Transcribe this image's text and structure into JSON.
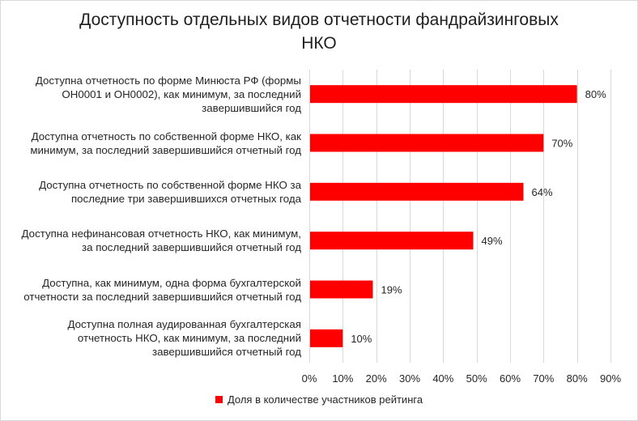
{
  "chart_data": {
    "type": "bar",
    "orientation": "horizontal",
    "title": [
      "Доступность отдельных видов отчетности фандрайзинговых",
      "НКО"
    ],
    "categories": [
      [
        "Доступна отчетность по форме Минюста РФ (формы",
        "ОН0001 и ОН0002), как минимум, за последний",
        "завершившийся год"
      ],
      [
        "Доступна отчетность по собственной форме НКО, как",
        "минимум, за последний завершившийся отчетный год"
      ],
      [
        "Доступна отчетность по собственной форме НКО за",
        "последние три завершившихся  отчетных года"
      ],
      [
        "Доступна нефинансовая отчетность НКО, как минимум,",
        "за последний завершившийся отчетный год"
      ],
      [
        "Доступна, как минимум, одна форма бухгалтерской",
        "отчетности за последний завершившийся отчетный год"
      ],
      [
        "Доступна полная аудированная бухгалтерская",
        "отчетность НКО, как минимум, за последний",
        "завершившийся отчетный год"
      ]
    ],
    "values": [
      80,
      70,
      64,
      49,
      19,
      10
    ],
    "data_labels": [
      "80%",
      "70%",
      "64%",
      "49%",
      "19%",
      "10%"
    ],
    "series": [
      {
        "name": "Доля в количестве участников рейтинга",
        "values": [
          80,
          70,
          64,
          49,
          19,
          10
        ]
      }
    ],
    "xlim": [
      0,
      90
    ],
    "x_ticks": [
      "0%",
      "10%",
      "20%",
      "30%",
      "40%",
      "50%",
      "60%",
      "70%",
      "80%",
      "90%"
    ],
    "grid": "vertical",
    "legend_position": "bottom",
    "bar_color": "#ff0000",
    "gridline_color": "#d9d9d9",
    "text_color": "#262626"
  }
}
